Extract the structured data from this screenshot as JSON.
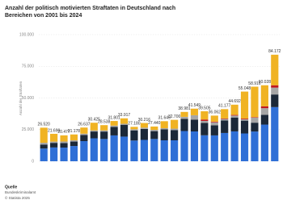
{
  "chart_data": {
    "type": "stacked_bar",
    "title": "Anzahl der politisch motivierten Straftaten in Deutschland nach Bereichen von 2001 bis 2024",
    "y_label": "Anzahl der Straftaten",
    "ylim": [
      0,
      100000
    ],
    "yticks": [
      0,
      {
        "value": 25000,
        "label": "25.000"
      },
      {
        "value": 50000,
        "label": "50.000"
      },
      {
        "value": 75000,
        "label": "75.000"
      },
      {
        "value": 100000,
        "label": "100.000"
      }
    ],
    "grid": true,
    "series": [
      {
        "color": "#2f6fd6",
        "values": [
          10054,
          10902,
          10792,
          12051,
          15914,
          18142,
          17607,
          20422,
          19468,
          16375,
          16873,
          17616,
          16557,
          16559,
          23872,
          23555,
          20520,
          20431,
          22342,
          23604,
          21964,
          23493,
          28945,
          42788
        ]
      },
      {
        "color": "#1b2838",
        "values": [
          3163,
          3639,
          3614,
          3521,
          4898,
          5363,
          5866,
          6724,
          9375,
          8025,
          8687,
          6191,
          8673,
          8113,
          9605,
          9389,
          9752,
          7961,
          9849,
          10971,
          10113,
          6976,
          7777,
          9971
        ]
      },
      {
        "color": "#a6a6a6",
        "values": [
          1400,
          1000,
          1200,
          1000,
          1000,
          900,
          900,
          1000,
          800,
          900,
          1000,
          1000,
          900,
          1100,
          1600,
          3400,
          1600,
          2400,
          1200,
          1500,
          1000,
          4000,
          5200,
          5411
        ]
      },
      {
        "color": "#c0171c",
        "values": [
          null,
          null,
          null,
          null,
          null,
          null,
          null,
          null,
          null,
          null,
          null,
          null,
          null,
          null,
          null,
          null,
          1100,
          500,
          400,
          500,
          600,
          400,
          1500,
          1874
        ]
      },
      {
        "color": "#f0b323",
        "values": [
          11903,
          6149,
          4871,
          4606,
          4825,
          6020,
          4165,
          3655,
          4274,
          1880,
          3656,
          2633,
          5515,
          6928,
          3904,
          5205,
          6533,
          4770,
          7386,
          8117,
          21371,
          24047,
          16606,
          24128
        ]
      }
    ],
    "totals": {
      "values": [
        26520,
        21690,
        20477,
        21178,
        26637,
        30425,
        28538,
        31801,
        33917,
        27180,
        30216,
        27440,
        31645,
        32700,
        38981,
        41549,
        39505,
        36062,
        41177,
        44692,
        55048,
        58916,
        60028,
        84172
      ],
      "value_labels": [
        "26.520",
        "21.690",
        "20.477",
        "21.178",
        "26.637",
        "30.425",
        "28.538",
        "31.801",
        "33.917",
        "27.180",
        "30.216",
        "27.440",
        "31.645",
        "32.700",
        "38.981",
        "41.549",
        "39.505",
        "36.062",
        "41.177",
        "44.692",
        "55.048",
        "58.916",
        "60.028",
        "84.172"
      ]
    },
    "source_title": "Quelle",
    "source": "Bundeskriminalamt",
    "copyright": "© Statista 2025"
  }
}
